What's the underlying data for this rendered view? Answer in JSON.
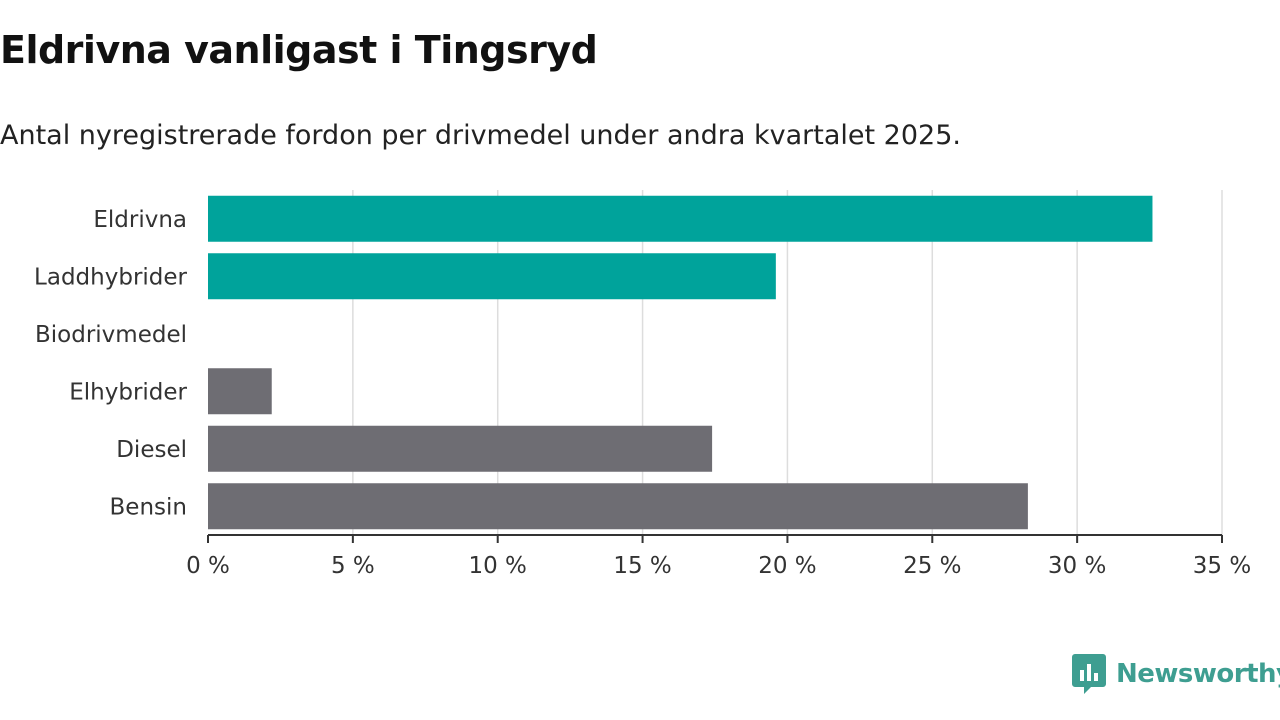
{
  "title": "Eldrivna vanligast i Tingsryd",
  "subtitle": "Antal nyregistrerade fordon per drivmedel under andra kvartalet 2025.",
  "logo": {
    "text": "Newsworthy",
    "icon": "newsworthy-logo-icon"
  },
  "colors": {
    "highlight": "#00a39b",
    "neutral": "#6e6d73",
    "grid": "#dddddd",
    "axis": "#333333",
    "logo": "#3e9e91"
  },
  "chart_data": {
    "type": "bar",
    "orientation": "horizontal",
    "categories": [
      "Eldrivna",
      "Laddhybrider",
      "Biodrivmedel",
      "Elhybrider",
      "Diesel",
      "Bensin"
    ],
    "values": [
      32.6,
      19.6,
      0,
      2.2,
      17.4,
      28.3
    ],
    "bar_colors": [
      "#00a39b",
      "#00a39b",
      "#6e6d73",
      "#6e6d73",
      "#6e6d73",
      "#6e6d73"
    ],
    "xlim": [
      0,
      35
    ],
    "xticks": [
      0,
      5,
      10,
      15,
      20,
      25,
      30,
      35
    ],
    "xtick_labels": [
      "0 %",
      "5 %",
      "10 %",
      "15 %",
      "20 %",
      "25 %",
      "30 %",
      "35 %"
    ],
    "grid": true,
    "legend": false
  }
}
